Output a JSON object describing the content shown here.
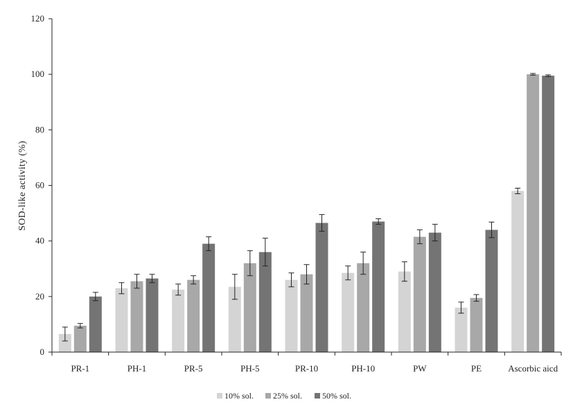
{
  "chart_data": {
    "type": "bar",
    "title": "",
    "xlabel": "",
    "ylabel": "SOD-like activity (%)",
    "ylim": [
      0,
      120
    ],
    "yticks": [
      0,
      20,
      40,
      60,
      80,
      100,
      120
    ],
    "grid": false,
    "legend_position": "bottom",
    "categories": [
      "PR-1",
      "PH-1",
      "PR-5",
      "PH-5",
      "PR-10",
      "PH-10",
      "PW",
      "PE",
      "Ascorbic aicd"
    ],
    "series": [
      {
        "name": "10% sol.",
        "color": "#d4d4d4",
        "values": [
          6.5,
          23,
          22.5,
          23.5,
          26,
          28.5,
          29,
          16,
          58
        ],
        "errors": [
          2.5,
          2,
          2,
          4.5,
          2.5,
          2.5,
          3.5,
          2,
          1
        ]
      },
      {
        "name": "25% sol.",
        "color": "#a8a8a8",
        "values": [
          9.5,
          25.5,
          26,
          32,
          28,
          32,
          41.5,
          19.5,
          100
        ],
        "errors": [
          0.8,
          2.5,
          1.5,
          4.5,
          3.5,
          4,
          2.5,
          1.2,
          0.3
        ]
      },
      {
        "name": "50% sol.",
        "color": "#747474",
        "values": [
          20,
          26.5,
          39,
          36,
          46.5,
          47,
          43,
          44,
          99.5
        ],
        "errors": [
          1.5,
          1.5,
          2.5,
          5,
          3,
          1,
          3,
          2.8,
          0.3
        ]
      }
    ]
  }
}
